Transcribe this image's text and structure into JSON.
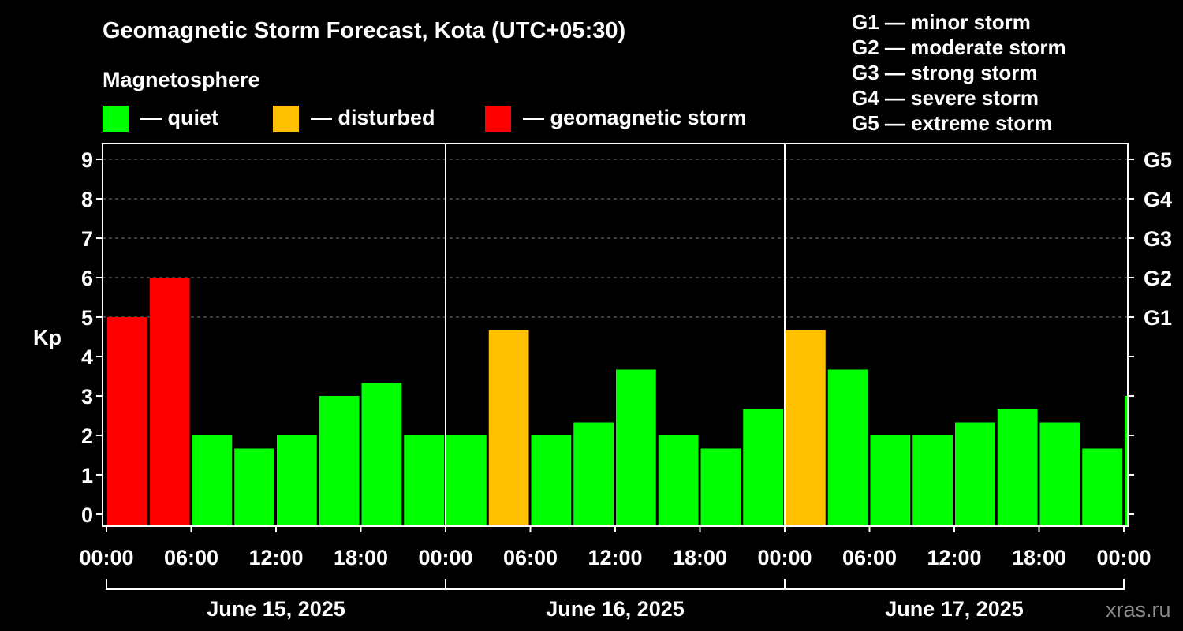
{
  "chart_data": {
    "type": "bar",
    "title": "Geomagnetic Storm Forecast, Kota (UTC+05:30)",
    "subtitle": "Magnetosphere",
    "ylabel": "Kp",
    "ylim": [
      0,
      9
    ],
    "yticks": [
      "0",
      "1",
      "2",
      "3",
      "4",
      "5",
      "6",
      "7",
      "8",
      "9"
    ],
    "right_ticks": [
      {
        "value": 5,
        "label": "G1"
      },
      {
        "value": 6,
        "label": "G2"
      },
      {
        "value": 7,
        "label": "G3"
      },
      {
        "value": 8,
        "label": "G4"
      },
      {
        "value": 9,
        "label": "G5"
      }
    ],
    "grid": "horizontal dashed at Kp 5-9",
    "legend": [
      {
        "label": "— quiet",
        "color": "#00ff00"
      },
      {
        "label": "— disturbed",
        "color": "#ffc000"
      },
      {
        "label": "— geomagnetic storm",
        "color": "#ff0000"
      }
    ],
    "storm_scale": [
      "G1 — minor storm",
      "G2 — moderate storm",
      "G3 — strong storm",
      "G4 — severe storm",
      "G5 — extreme storm"
    ],
    "x_tick_labels": [
      "00:00",
      "06:00",
      "12:00",
      "18:00",
      "00:00",
      "06:00",
      "12:00",
      "18:00",
      "00:00",
      "06:00",
      "12:00",
      "18:00",
      "00:00"
    ],
    "days": [
      "June 15, 2025",
      "June 16, 2025",
      "June 17, 2025"
    ],
    "x_range_hours": [
      0,
      72
    ],
    "bars": [
      {
        "start_h": 0,
        "kp": 5.0,
        "level": "storm"
      },
      {
        "start_h": 3,
        "kp": 6.0,
        "level": "storm"
      },
      {
        "start_h": 6,
        "kp": 2.0,
        "level": "quiet"
      },
      {
        "start_h": 9,
        "kp": 1.67,
        "level": "quiet"
      },
      {
        "start_h": 12,
        "kp": 2.0,
        "level": "quiet"
      },
      {
        "start_h": 15,
        "kp": 3.0,
        "level": "quiet"
      },
      {
        "start_h": 18,
        "kp": 3.33,
        "level": "quiet"
      },
      {
        "start_h": 21,
        "kp": 2.0,
        "level": "quiet"
      },
      {
        "start_h": 24,
        "kp": 2.0,
        "level": "quiet"
      },
      {
        "start_h": 27,
        "kp": 4.67,
        "level": "disturbed"
      },
      {
        "start_h": 30,
        "kp": 2.0,
        "level": "quiet"
      },
      {
        "start_h": 33,
        "kp": 2.33,
        "level": "quiet"
      },
      {
        "start_h": 36,
        "kp": 3.67,
        "level": "quiet"
      },
      {
        "start_h": 39,
        "kp": 2.0,
        "level": "quiet"
      },
      {
        "start_h": 42,
        "kp": 1.67,
        "level": "quiet"
      },
      {
        "start_h": 45,
        "kp": 2.67,
        "level": "quiet"
      },
      {
        "start_h": 48,
        "kp": 4.67,
        "level": "disturbed"
      },
      {
        "start_h": 51,
        "kp": 3.67,
        "level": "quiet"
      },
      {
        "start_h": 54,
        "kp": 2.0,
        "level": "quiet"
      },
      {
        "start_h": 57,
        "kp": 2.0,
        "level": "quiet"
      },
      {
        "start_h": 60,
        "kp": 2.33,
        "level": "quiet"
      },
      {
        "start_h": 63,
        "kp": 2.67,
        "level": "quiet"
      },
      {
        "start_h": 66,
        "kp": 2.33,
        "level": "quiet"
      },
      {
        "start_h": 69,
        "kp": 1.67,
        "level": "quiet"
      },
      {
        "start_h": 72,
        "kp": 3.0,
        "level": "quiet"
      }
    ],
    "level_colors": {
      "quiet": "#00ff00",
      "disturbed": "#ffc000",
      "storm": "#ff0000"
    }
  },
  "branding": "xras.ru"
}
